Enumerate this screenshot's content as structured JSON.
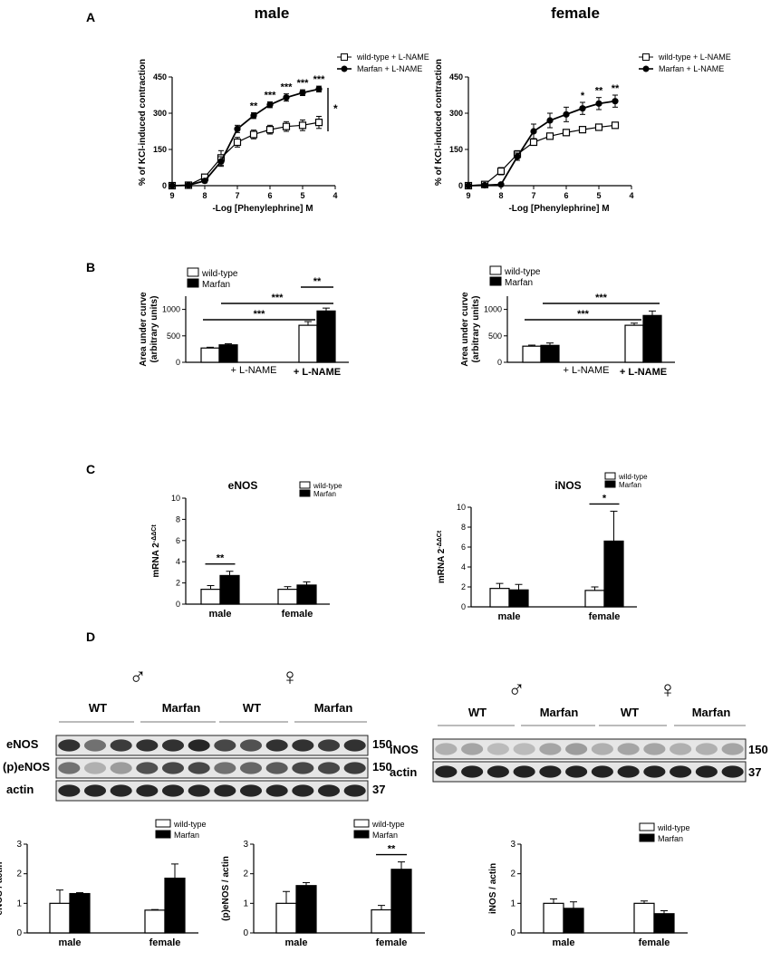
{
  "panel_letters": [
    "A",
    "B",
    "C",
    "D"
  ],
  "headers": {
    "male": "male",
    "female": "female"
  },
  "panel_a": {
    "ylabel": "% of KCl-induced contraction",
    "xlabel": "-Log [Phenylephrine] M",
    "legend": [
      "wild-type + L-NAME",
      "Marfan + L-NAME"
    ],
    "bracket_sig": "*"
  },
  "panel_b": {
    "ylabel_line1": "Area under curve",
    "ylabel_line2": "(arbitrary units)",
    "treatment_label": "+ L-NAME",
    "legend": [
      "wild-type",
      "Marfan"
    ]
  },
  "panel_c": {
    "ylabel": "mRNA 2",
    "ylabel_sup": "-ΔΔCt",
    "legend": [
      "wild-type",
      "Marfan"
    ],
    "titles": [
      "eNOS",
      "iNOS"
    ]
  },
  "panel_d": {
    "sex_symbols": [
      "♂",
      "♀"
    ],
    "group_labels": [
      "WT",
      "Marfan",
      "WT",
      "Marfan"
    ],
    "left_blot_rows": [
      "eNOS",
      "(p)eNOS",
      "actin"
    ],
    "left_blot_kda": [
      "150",
      "150",
      "37"
    ],
    "right_blot_rows": [
      "iNOS",
      "actin"
    ],
    "right_blot_kda": [
      "150",
      "37"
    ],
    "legend": [
      "wild-type",
      "Marfan"
    ]
  },
  "chart_data": [
    {
      "type": "line",
      "panel": "A",
      "title": "male",
      "xlabel": "-Log [Phenylephrine] M",
      "ylabel": "% of KCl-induced contraction",
      "xlim": [
        9,
        4
      ],
      "ylim": [
        0,
        450
      ],
      "x_ticks": [
        9,
        8,
        7,
        6,
        5,
        4
      ],
      "y_ticks": [
        0,
        150,
        300,
        450
      ],
      "x": [
        9,
        8.5,
        8,
        7.5,
        7,
        6.5,
        6,
        5.5,
        5,
        4.5
      ],
      "series": [
        {
          "name": "wild-type + L-NAME",
          "marker": "open-square",
          "values": [
            0,
            2,
            35,
            115,
            180,
            212,
            232,
            245,
            250,
            262
          ],
          "errors": [
            0,
            3,
            8,
            30,
            20,
            18,
            18,
            20,
            22,
            25
          ]
        },
        {
          "name": "Marfan + L-NAME",
          "marker": "filled-circle",
          "values": [
            0,
            2,
            20,
            100,
            235,
            290,
            335,
            365,
            385,
            400
          ],
          "errors": [
            0,
            3,
            8,
            20,
            15,
            12,
            12,
            15,
            12,
            12
          ]
        }
      ],
      "significance": [
        {
          "x": 6.5,
          "label": "**"
        },
        {
          "x": 6,
          "label": "***"
        },
        {
          "x": 5.5,
          "label": "***"
        },
        {
          "x": 5,
          "label": "***"
        },
        {
          "x": 4.5,
          "label": "***"
        }
      ]
    },
    {
      "type": "line",
      "panel": "A",
      "title": "female",
      "xlabel": "-Log [Phenylephrine] M",
      "ylabel": "% of KCl-induced contraction",
      "xlim": [
        9,
        4
      ],
      "ylim": [
        0,
        450
      ],
      "x_ticks": [
        9,
        8,
        7,
        6,
        5,
        4
      ],
      "y_ticks": [
        0,
        150,
        300,
        450
      ],
      "x": [
        9,
        8.5,
        8,
        7.5,
        7,
        6.5,
        6,
        5.5,
        5,
        4.5
      ],
      "series": [
        {
          "name": "wild-type + L-NAME",
          "marker": "open-square",
          "values": [
            0,
            5,
            60,
            130,
            180,
            205,
            220,
            232,
            242,
            250
          ],
          "errors": [
            0,
            3,
            15,
            15,
            10,
            8,
            8,
            8,
            8,
            10
          ]
        },
        {
          "name": "Marfan + L-NAME",
          "marker": "filled-circle",
          "values": [
            0,
            2,
            5,
            120,
            225,
            270,
            295,
            320,
            340,
            350
          ],
          "errors": [
            0,
            2,
            5,
            15,
            30,
            30,
            30,
            25,
            25,
            25
          ]
        }
      ],
      "significance": [
        {
          "x": 5.5,
          "label": "*"
        },
        {
          "x": 5,
          "label": "**"
        },
        {
          "x": 4.5,
          "label": "**"
        }
      ]
    },
    {
      "type": "bar",
      "panel": "B",
      "ylabel": "Area under curve (arbitrary units)",
      "ylim": [
        0,
        1250
      ],
      "y_ticks": [
        0,
        500,
        1000
      ],
      "categories": [
        "",
        "+ L-NAME"
      ],
      "series": [
        {
          "name": "wild-type",
          "values": [
            270,
            700
          ],
          "errors": [
            15,
            70
          ]
        },
        {
          "name": "Marfan",
          "values": [
            330,
            970
          ],
          "errors": [
            20,
            55
          ]
        }
      ],
      "significance": [
        "***",
        "***",
        "**"
      ]
    },
    {
      "type": "bar",
      "panel": "B",
      "ylabel": "Area under curve (arbitrary units)",
      "ylim": [
        0,
        1250
      ],
      "y_ticks": [
        0,
        500,
        1000
      ],
      "categories": [
        "",
        "+ L-NAME"
      ],
      "series": [
        {
          "name": "wild-type",
          "values": [
            305,
            700
          ],
          "errors": [
            20,
            40
          ]
        },
        {
          "name": "Marfan",
          "values": [
            320,
            885
          ],
          "errors": [
            45,
            85
          ]
        }
      ],
      "significance": [
        "***",
        "***"
      ]
    },
    {
      "type": "bar",
      "panel": "C",
      "title": "eNOS",
      "ylabel": "mRNA 2-ΔΔCt",
      "ylim": [
        0,
        10
      ],
      "y_ticks": [
        0,
        2,
        4,
        6,
        8,
        10
      ],
      "categories": [
        "male",
        "female"
      ],
      "series": [
        {
          "name": "wild-type",
          "values": [
            1.4,
            1.4
          ],
          "errors": [
            0.35,
            0.25
          ]
        },
        {
          "name": "Marfan",
          "values": [
            2.7,
            1.8
          ],
          "errors": [
            0.4,
            0.3
          ]
        }
      ],
      "significance": [
        {
          "category": "male",
          "label": "**"
        }
      ]
    },
    {
      "type": "bar",
      "panel": "C",
      "title": "iNOS",
      "ylabel": "mRNA 2-ΔΔCt",
      "ylim": [
        0,
        10
      ],
      "y_ticks": [
        0,
        2,
        4,
        6,
        8,
        10
      ],
      "categories": [
        "male",
        "female"
      ],
      "series": [
        {
          "name": "wild-type",
          "values": [
            1.85,
            1.65
          ],
          "errors": [
            0.5,
            0.35
          ]
        },
        {
          "name": "Marfan",
          "values": [
            1.7,
            6.6
          ],
          "errors": [
            0.55,
            3.0
          ]
        }
      ],
      "significance": [
        {
          "category": "female",
          "label": "*"
        }
      ]
    },
    {
      "type": "bar",
      "panel": "D",
      "ylabel": "eNOS / actin",
      "ylim": [
        0,
        3
      ],
      "y_ticks": [
        0,
        1,
        2,
        3
      ],
      "categories": [
        "male",
        "female"
      ],
      "series": [
        {
          "name": "wild-type",
          "values": [
            1.0,
            0.77
          ],
          "errors": [
            0.45,
            0.02
          ]
        },
        {
          "name": "Marfan",
          "values": [
            1.33,
            1.85
          ],
          "errors": [
            0.03,
            0.48
          ]
        }
      ],
      "significance": []
    },
    {
      "type": "bar",
      "panel": "D",
      "ylabel": "(p)eNOS / actin",
      "ylim": [
        0,
        3
      ],
      "y_ticks": [
        0,
        1,
        2,
        3
      ],
      "categories": [
        "male",
        "female"
      ],
      "series": [
        {
          "name": "wild-type",
          "values": [
            1.0,
            0.78
          ],
          "errors": [
            0.4,
            0.15
          ]
        },
        {
          "name": "Marfan",
          "values": [
            1.6,
            2.15
          ],
          "errors": [
            0.1,
            0.25
          ]
        }
      ],
      "significance": [
        {
          "category": "female",
          "label": "**"
        }
      ]
    },
    {
      "type": "bar",
      "panel": "D",
      "ylabel": "iNOS / actin",
      "ylim": [
        0,
        3
      ],
      "y_ticks": [
        0,
        1,
        2,
        3
      ],
      "categories": [
        "male",
        "female"
      ],
      "series": [
        {
          "name": "wild-type",
          "values": [
            1.0,
            1.0
          ],
          "errors": [
            0.15,
            0.08
          ]
        },
        {
          "name": "Marfan",
          "values": [
            0.83,
            0.65
          ],
          "errors": [
            0.22,
            0.1
          ]
        }
      ],
      "significance": []
    }
  ]
}
